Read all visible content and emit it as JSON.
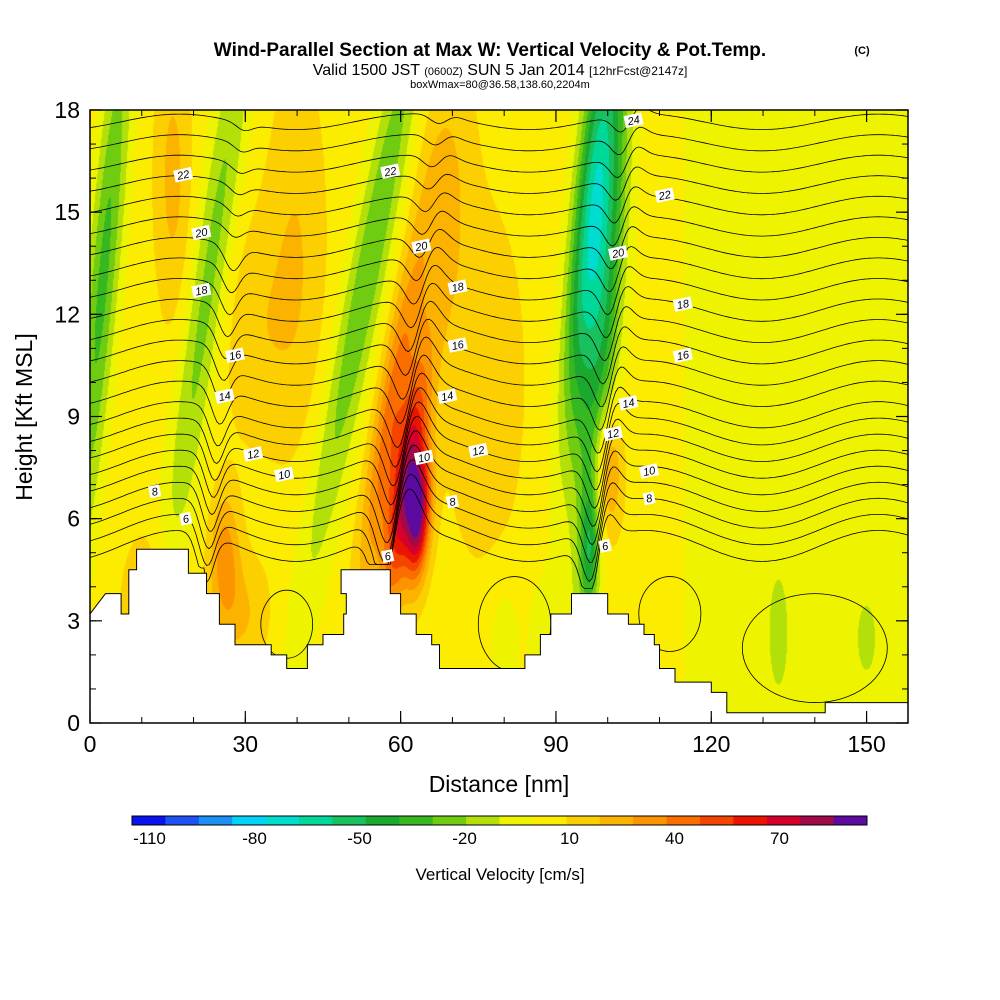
{
  "chart_data": {
    "type": "heatmap",
    "title": {
      "main": "Wind-Parallel Section at Max W: Vertical Velocity & Pot.Temp.",
      "mark": "(C)",
      "valid_prefix": "Valid 1500 JST",
      "valid_z": "(0600Z)",
      "valid_day": "SUN 5 Jan 2014",
      "valid_fcst": "[12hrFcst@2147z]",
      "box": "boxWmax=80@36.58,138.60,2204m"
    },
    "xlabel": "Distance [nm]",
    "ylabel": "Height [Kft MSL]",
    "xlim": [
      0,
      158
    ],
    "ylim": [
      0,
      18
    ],
    "x_ticks": [
      "0",
      "30",
      "60",
      "90",
      "120",
      "150"
    ],
    "y_ticks": [
      "0",
      "3",
      "6",
      "9",
      "12",
      "15",
      "18"
    ],
    "x_tick_values": [
      0,
      30,
      60,
      90,
      120,
      150
    ],
    "y_tick_values": [
      0,
      3,
      6,
      9,
      12,
      15,
      18
    ],
    "x_minor_step": 10,
    "y_minor_step": 1,
    "colorbar": {
      "label": "Vertical Velocity [cm/s]",
      "tick_labels": [
        "-110",
        "-80",
        "-50",
        "-20",
        "10",
        "40",
        "70"
      ],
      "tick_values": [
        -110,
        -80,
        -50,
        -20,
        10,
        40,
        70
      ],
      "range": [
        -115,
        95
      ],
      "step": 10,
      "colors": [
        "#0a12f0",
        "#1f52f5",
        "#1a90f5",
        "#00d2f8",
        "#00dcd0",
        "#00d89a",
        "#18c05e",
        "#1aa82e",
        "#36b820",
        "#70cc10",
        "#b4e00a",
        "#eef400",
        "#fcec00",
        "#fcd000",
        "#fcb300",
        "#fc9400",
        "#fa6e00",
        "#f54400",
        "#eb1400",
        "#d6002c",
        "#a00a48",
        "#5c0aa0"
      ]
    },
    "theta_contours": {
      "levels": [
        6,
        8,
        10,
        12,
        14,
        16,
        18,
        20,
        22,
        24
      ],
      "labels": [
        {
          "text": "22",
          "x": 18,
          "y": 16.1
        },
        {
          "text": "20",
          "x": 21.5,
          "y": 14.4
        },
        {
          "text": "18",
          "x": 21.5,
          "y": 12.7
        },
        {
          "text": "16",
          "x": 28,
          "y": 10.8
        },
        {
          "text": "14",
          "x": 26,
          "y": 9.6
        },
        {
          "text": "12",
          "x": 31.5,
          "y": 7.9
        },
        {
          "text": "10",
          "x": 37.5,
          "y": 7.3
        },
        {
          "text": "8",
          "x": 12.5,
          "y": 6.8
        },
        {
          "text": "6",
          "x": 18.5,
          "y": 6.0
        },
        {
          "text": "22",
          "x": 58,
          "y": 16.2
        },
        {
          "text": "20",
          "x": 64,
          "y": 14.0
        },
        {
          "text": "18",
          "x": 71,
          "y": 12.8
        },
        {
          "text": "16",
          "x": 71,
          "y": 11.1
        },
        {
          "text": "14",
          "x": 69,
          "y": 9.6
        },
        {
          "text": "12",
          "x": 75,
          "y": 8.0
        },
        {
          "text": "10",
          "x": 64.5,
          "y": 7.8
        },
        {
          "text": "8",
          "x": 70,
          "y": 6.5
        },
        {
          "text": "6",
          "x": 57.5,
          "y": 4.9
        },
        {
          "text": "24",
          "x": 105,
          "y": 17.7
        },
        {
          "text": "22",
          "x": 111,
          "y": 15.5
        },
        {
          "text": "20",
          "x": 102,
          "y": 13.8
        },
        {
          "text": "18",
          "x": 114.5,
          "y": 12.3
        },
        {
          "text": "16",
          "x": 114.5,
          "y": 10.8
        },
        {
          "text": "14",
          "x": 104,
          "y": 9.4
        },
        {
          "text": "12",
          "x": 101,
          "y": 8.5
        },
        {
          "text": "10",
          "x": 108,
          "y": 7.4
        },
        {
          "text": "8",
          "x": 108,
          "y": 6.6
        },
        {
          "text": "6",
          "x": 99.5,
          "y": 5.2
        }
      ]
    },
    "terrain_kft": [
      [
        0,
        3.2
      ],
      [
        3,
        3.8
      ],
      [
        6,
        3.8
      ],
      [
        6,
        3.2
      ],
      [
        7.5,
        3.2
      ],
      [
        7.5,
        4.5
      ],
      [
        9,
        4.5
      ],
      [
        9,
        5.1
      ],
      [
        14,
        5.1
      ],
      [
        19,
        5.1
      ],
      [
        19,
        4.4
      ],
      [
        22.5,
        4.4
      ],
      [
        22.5,
        3.8
      ],
      [
        25,
        3.8
      ],
      [
        25,
        2.9
      ],
      [
        28,
        2.9
      ],
      [
        28,
        2.3
      ],
      [
        35,
        2.3
      ],
      [
        35,
        2.0
      ],
      [
        38,
        2.0
      ],
      [
        38,
        1.6
      ],
      [
        42,
        1.6
      ],
      [
        42,
        2.3
      ],
      [
        45,
        2.3
      ],
      [
        45,
        2.6
      ],
      [
        49,
        2.6
      ],
      [
        49,
        3.2
      ],
      [
        49.5,
        3.2
      ],
      [
        49.5,
        3.8
      ],
      [
        48.5,
        3.8
      ],
      [
        48.5,
        4.5
      ],
      [
        58,
        4.5
      ],
      [
        58,
        3.8
      ],
      [
        60,
        3.8
      ],
      [
        60,
        3.2
      ],
      [
        63,
        3.2
      ],
      [
        63,
        2.6
      ],
      [
        66,
        2.6
      ],
      [
        66,
        2.3
      ],
      [
        67.5,
        2.3
      ],
      [
        67.5,
        1.6
      ],
      [
        84,
        1.6
      ],
      [
        84,
        2.0
      ],
      [
        87,
        2.0
      ],
      [
        87,
        2.6
      ],
      [
        89,
        2.6
      ],
      [
        89,
        3.2
      ],
      [
        93,
        3.2
      ],
      [
        93,
        3.8
      ],
      [
        100,
        3.8
      ],
      [
        100,
        3.2
      ],
      [
        104,
        3.2
      ],
      [
        104,
        2.9
      ],
      [
        107,
        2.9
      ],
      [
        107,
        2.6
      ],
      [
        109,
        2.6
      ],
      [
        109,
        2.3
      ],
      [
        110,
        2.3
      ],
      [
        110,
        1.6
      ],
      [
        113,
        1.6
      ],
      [
        113,
        1.2
      ],
      [
        120,
        1.2
      ],
      [
        120,
        0.9
      ],
      [
        123,
        0.9
      ],
      [
        123,
        0.3
      ],
      [
        142,
        0.3
      ],
      [
        142,
        0.6
      ],
      [
        149,
        0.6
      ],
      [
        149,
        0.6
      ],
      [
        158,
        0.6
      ]
    ]
  }
}
